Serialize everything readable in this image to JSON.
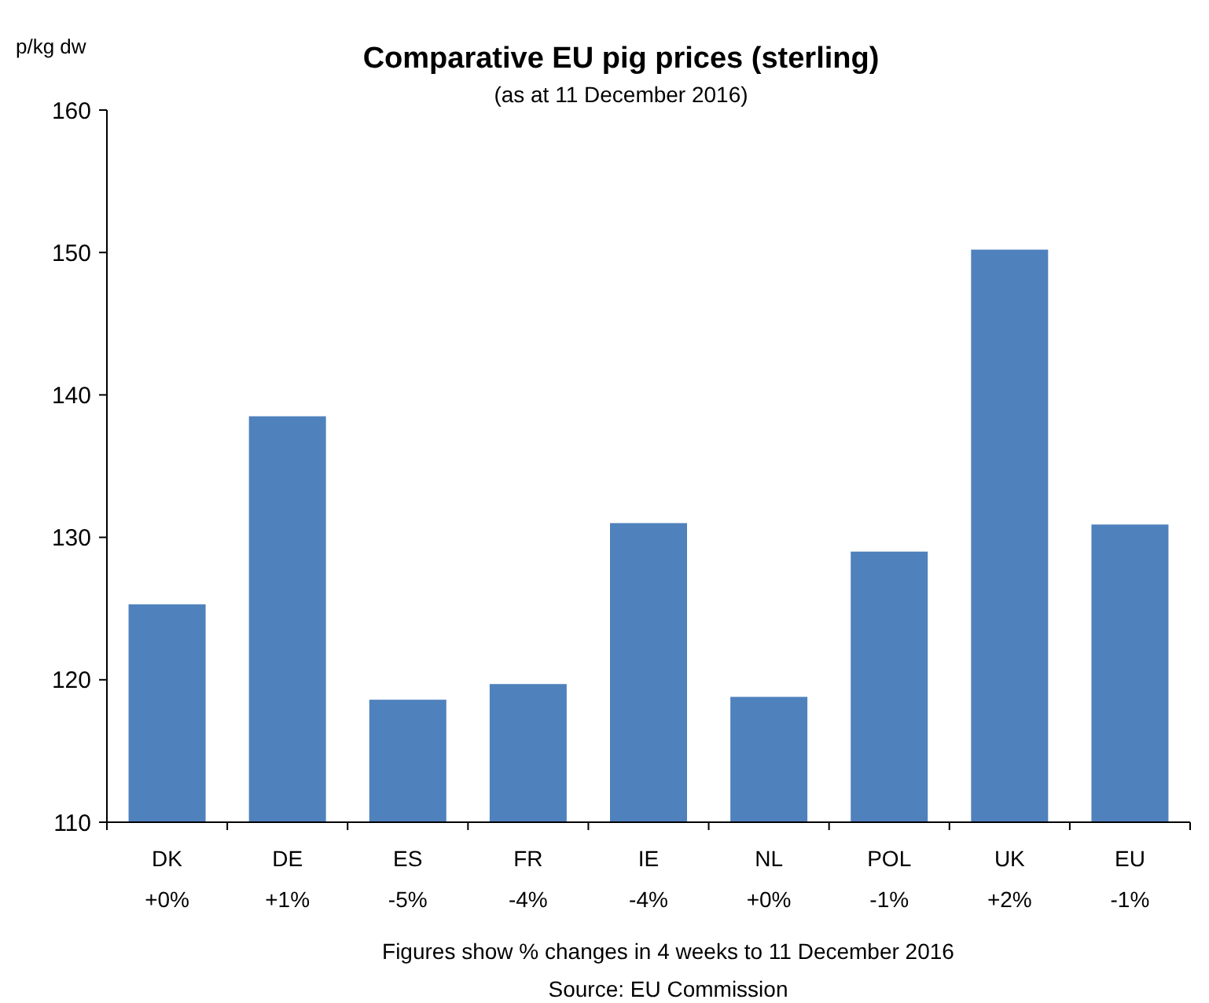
{
  "chart_data": {
    "type": "bar",
    "title": "Comparative EU  pig prices (sterling)",
    "subtitle": "(as at 11 December 2016)",
    "ylabel": "p/kg dw",
    "categories": [
      "DK\n+0%",
      "DE\n+1%",
      "ES\n-5%",
      "FR\n-4%",
      "IE\n-4%",
      "NL\n+0%",
      "POL\n-1%",
      "UK\n+2%",
      "EU\n-1%"
    ],
    "values": [
      125.3,
      138.5,
      118.6,
      119.7,
      131.0,
      118.8,
      129.0,
      150.2,
      130.9
    ],
    "color": "#4f81bd",
    "ylim": [
      110,
      160
    ],
    "yticks": [
      110,
      120,
      130,
      140,
      150,
      160
    ],
    "grid": false,
    "annotations": [
      "Figures show % changes in 4 weeks to 11 December 2016",
      "Source: EU  Commission"
    ]
  }
}
